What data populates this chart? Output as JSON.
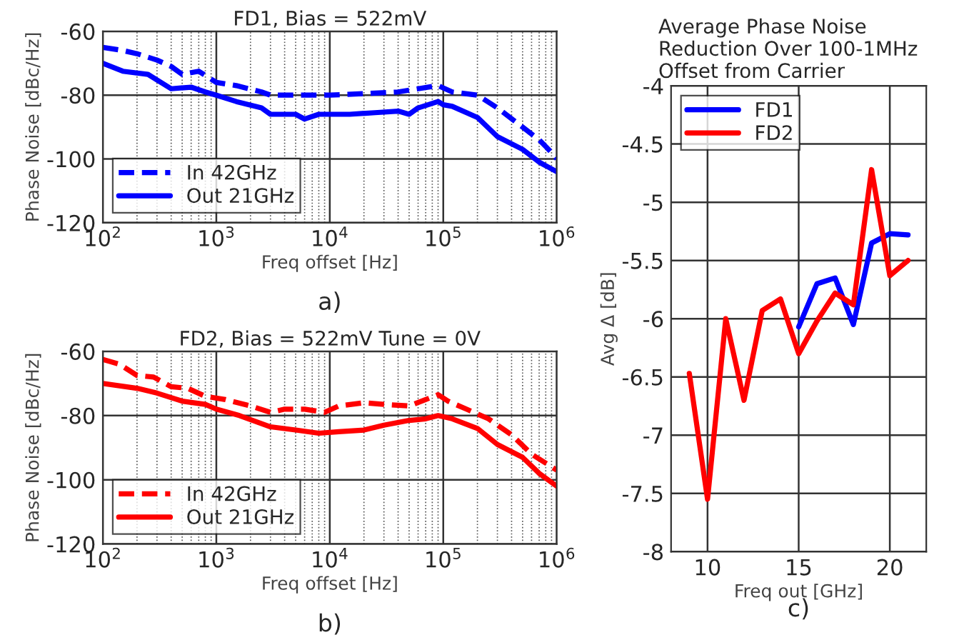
{
  "chart_data": [
    {
      "type": "line",
      "title": "FD1, Bias = 522mV",
      "xlabel": "Freq offset [Hz]",
      "ylabel": "Phase Noise [dBc/Hz]",
      "annotations": [
        "a)"
      ],
      "log": "x",
      "grid": true,
      "legend": "bottom left",
      "xlim": [
        100,
        1000000
      ],
      "ylim": [
        -120,
        -60
      ],
      "yticks": [
        -120,
        -100,
        -80,
        -60
      ],
      "xticks": [
        {
          "value": 100,
          "label": "10$^{2}$"
        },
        {
          "value": 1000,
          "label": "10$^{3}$"
        },
        {
          "value": 10000,
          "label": "10$^{4}$"
        },
        {
          "value": 100000,
          "label": "10$^{5}$"
        },
        {
          "value": 1000000,
          "label": "10$^{6}$"
        }
      ],
      "series": [
        {
          "name": "In 42GHz",
          "color": "#0000ff",
          "line_style": "dashed",
          "x": [
            100,
            150,
            200,
            300,
            400,
            500,
            700,
            1000,
            1500,
            2500,
            3000,
            6000,
            10000,
            20000,
            40000,
            60000,
            90000,
            120000,
            200000,
            300000,
            500000,
            700000,
            900000,
            1000000
          ],
          "values": [
            -65,
            -66,
            -67,
            -69,
            -71,
            -73.5,
            -72.5,
            -76,
            -77,
            -79,
            -80,
            -80,
            -80,
            -79.5,
            -79,
            -78,
            -77,
            -79,
            -80,
            -84,
            -90,
            -94,
            -98,
            -100
          ]
        },
        {
          "name": "Out 21GHz",
          "color": "#0000ff",
          "line_style": "solid",
          "x": [
            100,
            150,
            250,
            400,
            600,
            800,
            1000,
            1500,
            2500,
            3000,
            5000,
            6000,
            8000,
            10000,
            15000,
            25000,
            40000,
            50000,
            60000,
            90000,
            100000,
            120000,
            200000,
            300000,
            500000,
            700000,
            1000000
          ],
          "values": [
            -70,
            -72.5,
            -73.5,
            -78,
            -77.5,
            -79,
            -80,
            -82,
            -84,
            -86,
            -86,
            -87.5,
            -86,
            -86,
            -86,
            -85.5,
            -85,
            -86,
            -84,
            -82,
            -83,
            -83.5,
            -87,
            -93,
            -97,
            -101,
            -104
          ]
        }
      ]
    },
    {
      "type": "line",
      "title": "FD2, Bias = 522mV Tune = 0V",
      "xlabel": "Freq offset [Hz]",
      "ylabel": "Phase Noise [dBc/Hz]",
      "annotations": [
        "b)"
      ],
      "log": "x",
      "grid": true,
      "legend": "bottom left",
      "xlim": [
        100,
        1000000
      ],
      "ylim": [
        -120,
        -60
      ],
      "yticks": [
        -120,
        -100,
        -80,
        -60
      ],
      "xticks": [
        {
          "value": 100,
          "label": "10$^{2}$"
        },
        {
          "value": 1000,
          "label": "10$^{3}$"
        },
        {
          "value": 10000,
          "label": "10$^{4}$"
        },
        {
          "value": 100000,
          "label": "10$^{5}$"
        },
        {
          "value": 1000000,
          "label": "10$^{6}$"
        }
      ],
      "series": [
        {
          "name": "In 42GHz",
          "color": "#ff0000",
          "line_style": "dashed",
          "x": [
            100,
            140,
            200,
            280,
            400,
            560,
            800,
            1200,
            2000,
            3000,
            4000,
            6000,
            9000,
            12000,
            20000,
            30000,
            50000,
            70000,
            90000,
            110000,
            160000,
            250000,
            400000,
            600000,
            1000000
          ],
          "values": [
            -62.5,
            -64,
            -67.5,
            -68,
            -71,
            -71.5,
            -74,
            -75,
            -77,
            -79,
            -78,
            -78,
            -79,
            -77,
            -76,
            -76.5,
            -77,
            -75,
            -73.5,
            -75.5,
            -78,
            -81,
            -86,
            -92,
            -97
          ]
        },
        {
          "name": "Out 21GHz",
          "color": "#ff0000",
          "line_style": "solid",
          "x": [
            100,
            200,
            300,
            500,
            800,
            1000,
            1600,
            3000,
            5000,
            8000,
            12000,
            20000,
            30000,
            50000,
            70000,
            90000,
            120000,
            200000,
            300000,
            500000,
            700000,
            1000000
          ],
          "values": [
            -70,
            -71.5,
            -73,
            -75.5,
            -76.5,
            -78,
            -80,
            -83.5,
            -84.5,
            -85.5,
            -85,
            -84.5,
            -83,
            -81.5,
            -81,
            -80,
            -81,
            -84,
            -89,
            -93,
            -98,
            -102
          ]
        }
      ]
    },
    {
      "type": "line",
      "title": "Average Phase Noise\nReduction Over 100-1MHz\nOffset from Carrier",
      "xlabel": "Freq out [GHz]",
      "ylabel": "Avg Δ [dB]",
      "annotations": [
        "c)"
      ],
      "grid": true,
      "legend": "top left",
      "xlim": [
        8,
        22
      ],
      "xticks": [
        10,
        15,
        20
      ],
      "ylim": [
        -8,
        -4
      ],
      "yticks": [
        -8,
        -7.5,
        -7,
        -6.5,
        -6,
        -5.5,
        -5,
        -4.5,
        -4
      ],
      "series": [
        {
          "name": "FD1",
          "color": "#0000ff",
          "line_style": "solid",
          "x": [
            15,
            16,
            17,
            18,
            19,
            20,
            21
          ],
          "values": [
            -6.07,
            -5.7,
            -5.65,
            -6.05,
            -5.35,
            -5.27,
            -5.28
          ]
        },
        {
          "name": "FD2",
          "color": "#ff0000",
          "line_style": "solid",
          "x": [
            9,
            10,
            11,
            12,
            13,
            14,
            15,
            16,
            17,
            18,
            19,
            20,
            21
          ],
          "values": [
            -6.47,
            -7.55,
            -6.0,
            -6.7,
            -5.93,
            -5.83,
            -6.3,
            -6.02,
            -5.78,
            -5.88,
            -4.72,
            -5.63,
            -5.5
          ]
        }
      ]
    }
  ]
}
